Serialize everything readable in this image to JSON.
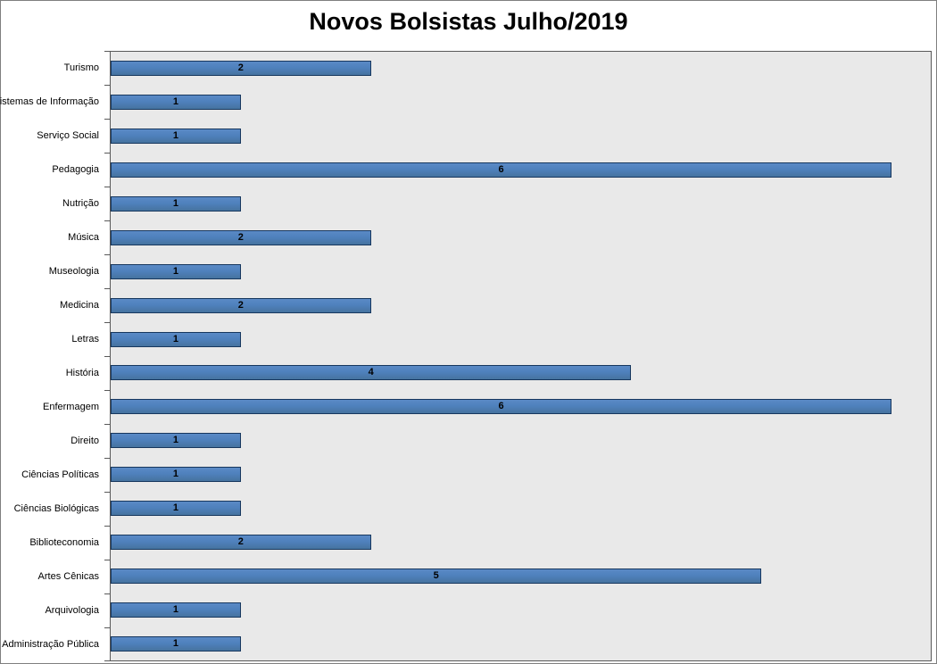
{
  "page": {
    "title": "Novos Bolsistas Julho/2019"
  },
  "chart_data": {
    "type": "bar",
    "orientation": "horizontal",
    "title": "Novos Bolsistas Julho/2019",
    "categories": [
      "Turismo",
      "Sistemas de Informação",
      "Serviço Social",
      "Pedagogia",
      "Nutrição",
      "Música",
      "Museologia",
      "Medicina",
      "Letras",
      "História",
      "Enfermagem",
      "Direito",
      "Ciências Políticas",
      "Ciências Biológicas",
      "Biblioteconomia",
      "Artes Cênicas",
      "Arquivologia",
      "Administração Pública"
    ],
    "values": [
      2,
      1,
      1,
      6,
      1,
      2,
      1,
      2,
      1,
      4,
      6,
      1,
      1,
      1,
      2,
      5,
      1,
      1
    ],
    "xlim": [
      0,
      6.3
    ],
    "grid": false,
    "legend": false,
    "data_labels": "centered-in-bar",
    "colors": {
      "bar_fill": "#4f81bd",
      "bar_border": "#17375e",
      "plot_background": "#e9e9e9",
      "plot_border": "#595959",
      "value_label": "#000000",
      "category_label": "#000000",
      "title": "#000000"
    }
  }
}
